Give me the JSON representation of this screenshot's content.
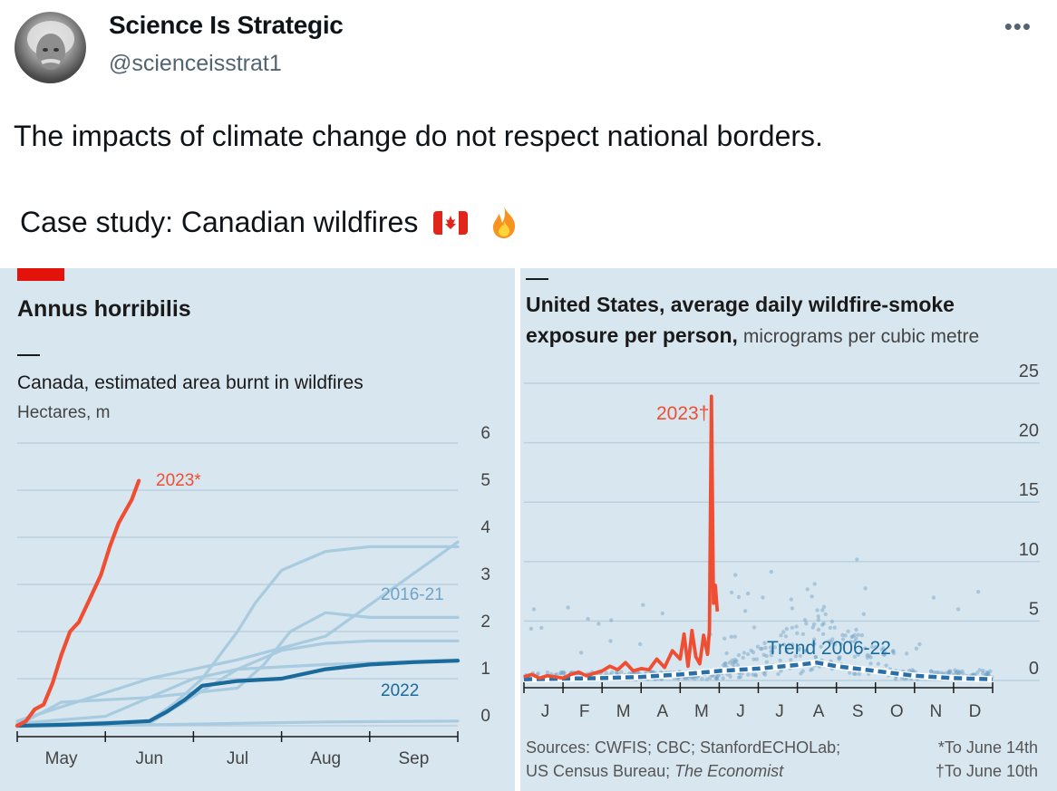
{
  "tweet": {
    "author_name": "Science Is Strategic",
    "handle": "@scienceisstrat1",
    "more_icon": "more-icon",
    "text_line1": "The impacts of climate change do not respect national borders.",
    "text_line2": "Case study: Canadian wildfires",
    "emoji": [
      "canada-flag-icon",
      "fire-icon"
    ]
  },
  "colors": {
    "accent_red": "#e3120b",
    "line_2023": "#f04e33",
    "line_2022": "#1a6a9c",
    "line_past": "#a8cbe0",
    "panel_bg": "#d8e6ef",
    "trend": "#2a6fa8"
  },
  "chart_data": [
    {
      "type": "line",
      "title": "Annus horribilis",
      "subtitle": "Canada, estimated area burnt in wildfires",
      "ylabel": "Hectares, m",
      "categories": [
        "May",
        "Jun",
        "Jul",
        "Aug",
        "Sep"
      ],
      "x_domain_months": [
        4.5,
        9.5
      ],
      "ylim": [
        0,
        6
      ],
      "yticks": [
        "0",
        "1",
        "2",
        "3",
        "4",
        "5",
        "6"
      ],
      "grid": true,
      "series": [
        {
          "name": "2023*",
          "x": [
            4.5,
            4.6,
            4.7,
            4.8,
            4.9,
            5.0,
            5.1,
            5.2,
            5.3,
            5.45,
            5.55,
            5.65,
            5.8,
            5.88
          ],
          "values": [
            0.0,
            0.1,
            0.35,
            0.45,
            0.9,
            1.5,
            2.0,
            2.2,
            2.6,
            3.2,
            3.8,
            4.3,
            4.8,
            5.2
          ]
        },
        {
          "name": "2022",
          "x": [
            4.5,
            5.0,
            5.5,
            6.0,
            6.2,
            6.4,
            6.6,
            7.0,
            7.5,
            8.0,
            8.5,
            9.0,
            9.5
          ],
          "values": [
            0.0,
            0.02,
            0.05,
            0.1,
            0.3,
            0.55,
            0.85,
            0.95,
            1.0,
            1.2,
            1.3,
            1.35,
            1.38
          ]
        },
        {
          "name": "2016-21",
          "label": "2016-21",
          "x": [
            4.5,
            6.0,
            6.3,
            6.6,
            7.0,
            7.2,
            7.5,
            8.0,
            8.5,
            9.5
          ],
          "values": [
            0.02,
            0.1,
            0.5,
            1.0,
            2.0,
            2.6,
            3.3,
            3.7,
            3.8,
            3.8
          ]
        },
        {
          "name": "2016-21 b",
          "x": [
            4.5,
            5.0,
            6.0,
            7.0,
            7.3,
            7.6,
            8.0,
            8.5,
            9.5
          ],
          "values": [
            0.0,
            0.5,
            0.6,
            0.8,
            1.3,
            2.0,
            2.4,
            2.3,
            2.3
          ]
        },
        {
          "name": "2016-21 c",
          "x": [
            4.5,
            5.5,
            6.0,
            6.5,
            7.0,
            7.5,
            8.0,
            8.5,
            9.5
          ],
          "values": [
            0.05,
            0.2,
            0.6,
            1.0,
            1.2,
            1.6,
            1.75,
            1.8,
            1.8
          ]
        },
        {
          "name": "2016-21 d",
          "x": [
            4.5,
            6.0,
            7.0,
            7.5,
            8.0,
            9.5
          ],
          "values": [
            0.1,
            1.0,
            1.4,
            1.65,
            1.9,
            3.9
          ]
        },
        {
          "name": "2016-21 e",
          "x": [
            4.5,
            6.0,
            7.0,
            8.0,
            9.5
          ],
          "values": [
            0.0,
            0.05,
            1.2,
            1.3,
            1.4
          ]
        },
        {
          "name": "2016-21 f",
          "x": [
            4.5,
            6.0,
            7.0,
            8.0,
            9.5
          ],
          "values": [
            0.0,
            0.02,
            0.05,
            0.08,
            0.1
          ]
        }
      ],
      "annotations": [
        "2023*",
        "2016-21",
        "2022"
      ]
    },
    {
      "type": "line",
      "title": "United States, average daily wildfire-smoke exposure per person,",
      "title_line1": "United States, average daily wildfire-smoke",
      "title_line2": "exposure per person,",
      "units": "micrograms per cubic metre",
      "categories": [
        "J",
        "F",
        "M",
        "A",
        "M",
        "J",
        "J",
        "A",
        "S",
        "O",
        "N",
        "D"
      ],
      "ylim": [
        0,
        25
      ],
      "yticks": [
        "0",
        "5",
        "10",
        "15",
        "20",
        "25"
      ],
      "grid": true,
      "series": [
        {
          "name": "2023†",
          "x": [
            0.0,
            0.2,
            0.4,
            0.6,
            0.8,
            1.0,
            1.2,
            1.4,
            1.6,
            1.8,
            2.0,
            2.2,
            2.4,
            2.6,
            2.8,
            3.0,
            3.2,
            3.4,
            3.6,
            3.8,
            4.0,
            4.1,
            4.2,
            4.3,
            4.4,
            4.5,
            4.6,
            4.7,
            4.75,
            4.8,
            4.85,
            4.9,
            4.95
          ],
          "values": [
            0.3,
            0.5,
            0.2,
            0.4,
            0.3,
            0.2,
            0.5,
            0.7,
            0.4,
            0.6,
            0.8,
            1.2,
            0.9,
            1.5,
            0.8,
            1.0,
            0.9,
            1.8,
            1.1,
            2.5,
            1.8,
            3.9,
            1.2,
            4.2,
            2.0,
            1.4,
            3.8,
            2.2,
            4.2,
            23.9,
            6.5,
            8.0,
            5.8
          ]
        },
        {
          "name": "Trend 2006-22",
          "x": [
            0,
            1,
            2,
            3,
            4,
            5,
            6,
            7,
            7.5,
            8,
            9,
            10,
            11,
            12
          ],
          "values": [
            0.1,
            0.15,
            0.2,
            0.3,
            0.5,
            0.8,
            1.0,
            1.3,
            1.5,
            1.2,
            0.8,
            0.4,
            0.2,
            0.1
          ]
        }
      ],
      "annotations": [
        "2023†",
        "Trend 2006-22"
      ],
      "sources": "Sources: CWFIS; CBC; StanfordECHOLab;",
      "sources_line2": "US Census Bureau;",
      "sources_italic": "The Economist",
      "footnote1": "*To June 14th",
      "footnote2": "†To June 10th"
    }
  ]
}
